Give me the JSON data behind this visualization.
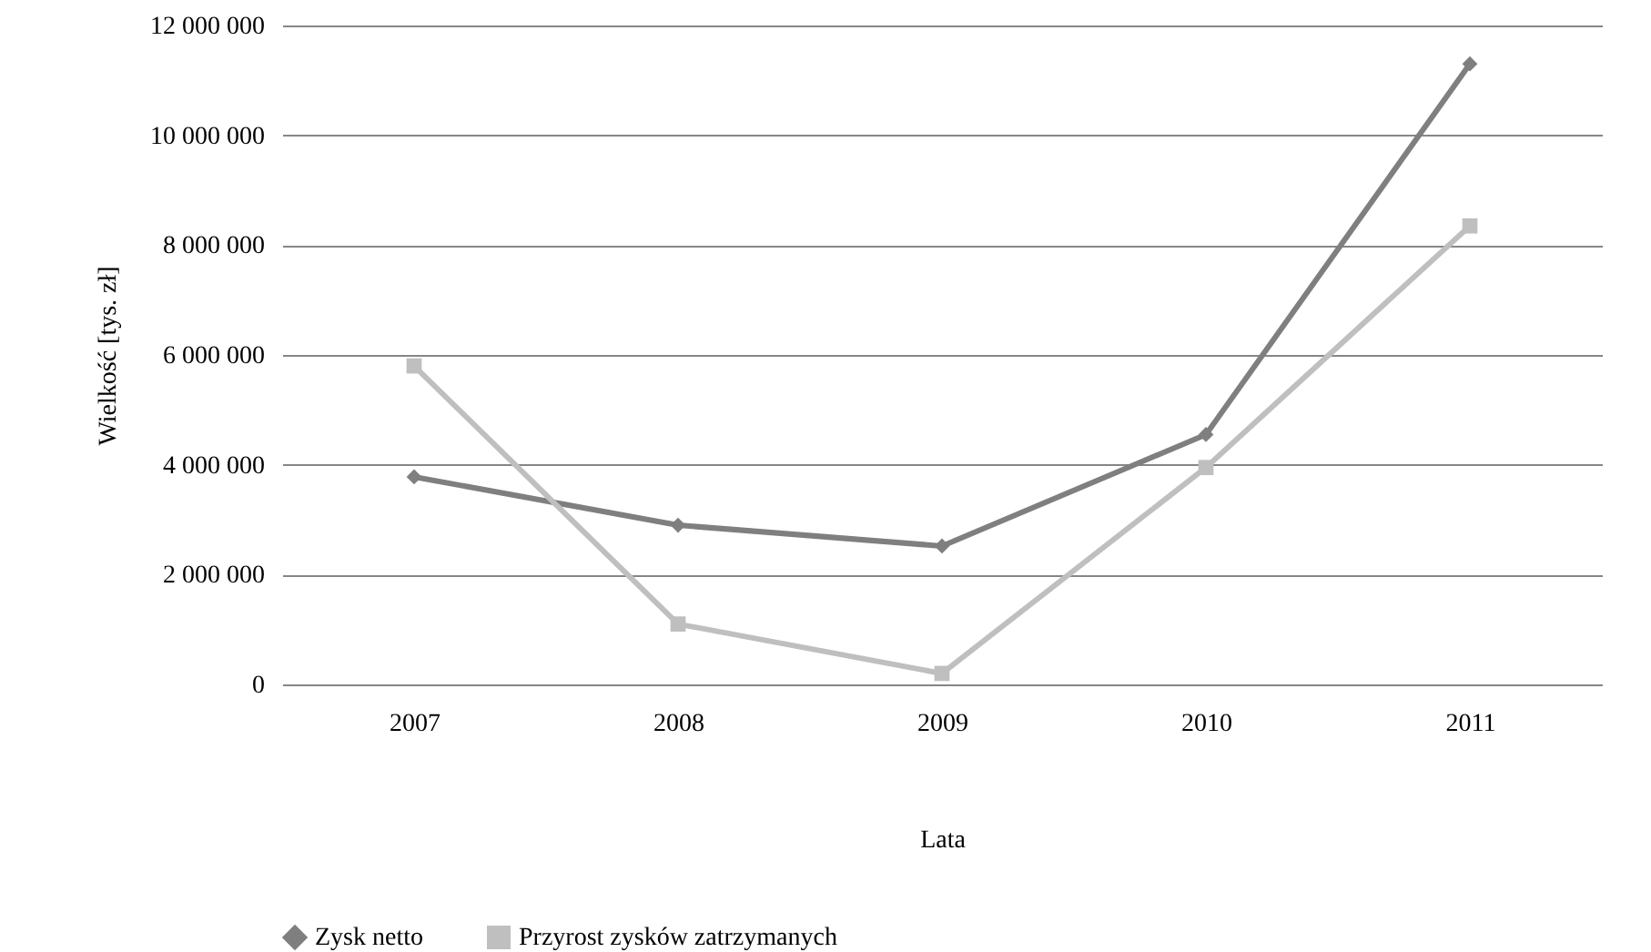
{
  "chart_data": {
    "type": "line",
    "xlabel": "Lata",
    "ylabel": "Wielkość [tys. zł]",
    "categories": [
      "2007",
      "2008",
      "2009",
      "2010",
      "2011"
    ],
    "series": [
      {
        "name": "Zysk netto",
        "color": "#7f7f7f",
        "marker": "diamond",
        "values": [
          3780000,
          2900000,
          2520000,
          4550000,
          11300000
        ]
      },
      {
        "name": "Przyrost zysków zatrzymanych",
        "color": "#bfbfbf",
        "marker": "square",
        "values": [
          5800000,
          1100000,
          200000,
          3950000,
          8350000
        ]
      }
    ],
    "ylim": [
      0,
      12000000
    ],
    "yticks": [
      {
        "value": 0,
        "label": "0"
      },
      {
        "value": 2000000,
        "label": "2 000 000"
      },
      {
        "value": 4000000,
        "label": "4 000 000"
      },
      {
        "value": 6000000,
        "label": "6 000 000"
      },
      {
        "value": 8000000,
        "label": "8 000 000"
      },
      {
        "value": 10000000,
        "label": "10 000 000"
      },
      {
        "value": 12000000,
        "label": "12 000 000"
      }
    ],
    "grid": "y",
    "legend": "bottom"
  }
}
